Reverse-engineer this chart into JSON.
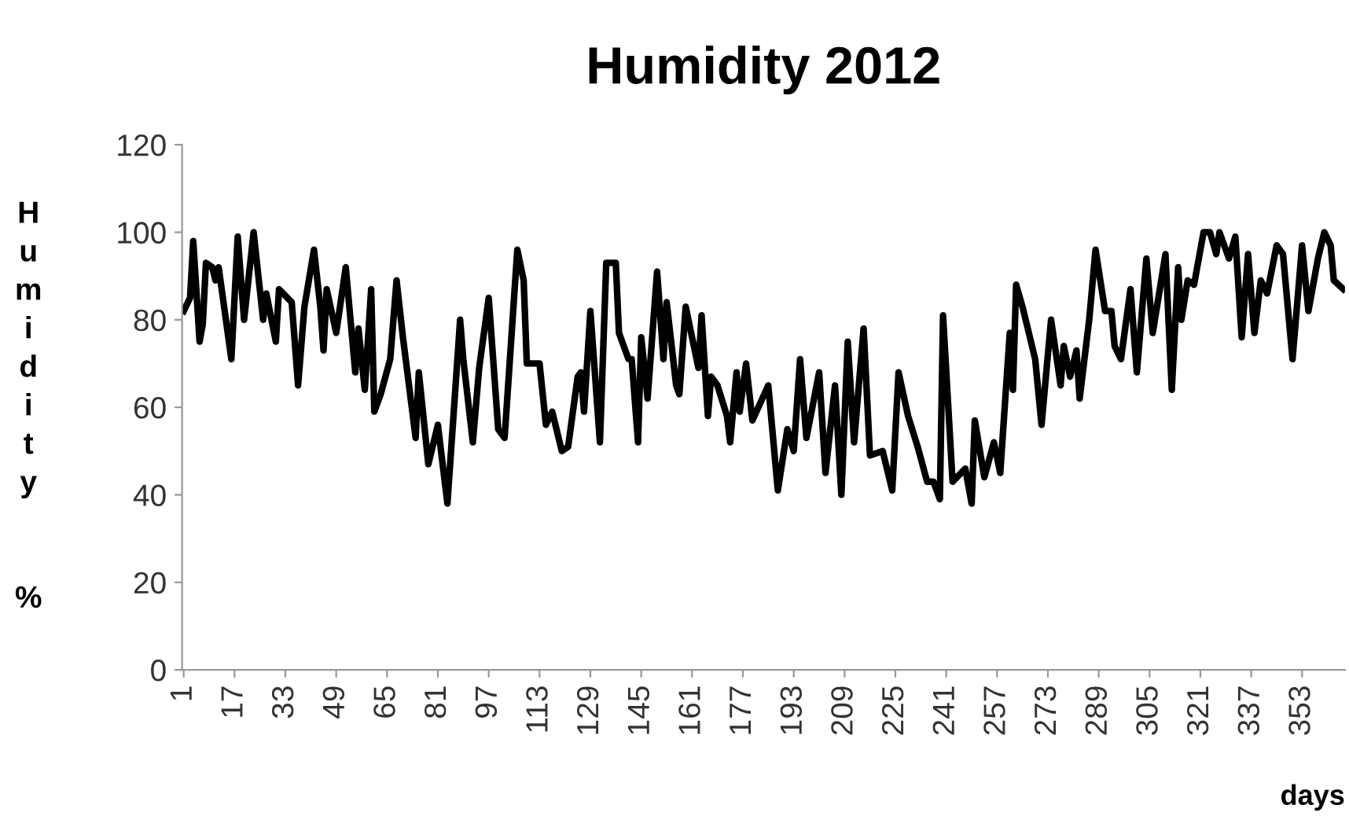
{
  "chart_data": {
    "type": "line",
    "title": "Humidity 2012",
    "xlabel": "days",
    "ylabel": "Humidity %",
    "x": [
      1,
      3,
      4,
      6,
      7,
      8,
      10,
      11,
      12,
      16,
      18,
      20,
      23,
      26,
      27,
      30,
      31,
      35,
      37,
      39,
      42,
      44,
      45,
      46,
      49,
      52,
      55,
      56,
      58,
      60,
      61,
      63,
      66,
      68,
      70,
      74,
      75,
      78,
      81,
      84,
      88,
      89,
      92,
      94,
      97,
      100,
      102,
      106,
      108,
      109,
      113,
      115,
      117,
      120,
      122,
      125,
      126,
      127,
      129,
      132,
      134,
      137,
      138,
      141,
      142,
      144,
      145,
      147,
      150,
      152,
      153,
      156,
      157,
      159,
      163,
      164,
      166,
      167,
      169,
      172,
      173,
      175,
      176,
      178,
      180,
      185,
      188,
      191,
      193,
      195,
      197,
      201,
      203,
      206,
      208,
      210,
      212,
      215,
      217,
      221,
      224,
      226,
      229,
      232,
      235,
      237,
      239,
      240,
      243,
      247,
      249,
      250,
      253,
      256,
      258,
      261,
      262,
      263,
      265,
      269,
      271,
      274,
      277,
      278,
      280,
      282,
      283,
      286,
      288,
      291,
      293,
      294,
      296,
      299,
      301,
      304,
      306,
      310,
      312,
      314,
      315,
      317,
      319,
      322,
      324,
      326,
      327,
      330,
      332,
      334,
      336,
      338,
      340,
      342,
      345,
      347,
      350,
      353,
      355,
      358,
      360,
      362,
      363,
      366
    ],
    "series": [
      {
        "color": "#000000",
        "values": [
          82,
          85,
          98,
          75,
          79,
          93,
          92,
          89,
          92,
          71,
          99,
          80,
          100,
          80,
          86,
          75,
          87,
          84,
          65,
          83,
          96,
          83,
          73,
          87,
          77,
          92,
          68,
          78,
          64,
          87,
          59,
          63,
          71,
          89,
          76,
          53,
          68,
          47,
          56,
          38,
          80,
          71,
          52,
          69,
          85,
          55,
          53,
          96,
          89,
          70,
          70,
          56,
          59,
          50,
          51,
          67,
          68,
          59,
          82,
          52,
          93,
          93,
          77,
          71,
          71,
          52,
          76,
          62,
          91,
          71,
          84,
          65,
          63,
          83,
          69,
          81,
          58,
          67,
          65,
          58,
          52,
          68,
          59,
          70,
          57,
          65,
          41,
          55,
          50,
          71,
          53,
          68,
          45,
          65,
          40,
          75,
          52,
          78,
          49,
          50,
          41,
          68,
          58,
          51,
          43,
          43,
          39,
          81,
          43,
          46,
          38,
          57,
          44,
          52,
          45,
          77,
          64,
          88,
          83,
          71,
          56,
          80,
          65,
          74,
          67,
          73,
          62,
          80,
          96,
          82,
          82,
          74,
          71,
          87,
          68,
          94,
          77,
          95,
          64,
          92,
          80,
          89,
          88,
          100,
          100,
          95,
          100,
          94,
          99,
          76,
          95,
          77,
          89,
          86,
          97,
          95,
          71,
          97,
          82,
          94,
          100,
          97,
          89,
          87
        ]
      }
    ],
    "xlim": [
      0.5,
      366.5
    ],
    "xticks": [
      1,
      17,
      33,
      49,
      65,
      81,
      97,
      113,
      129,
      145,
      161,
      177,
      193,
      209,
      225,
      241,
      257,
      273,
      289,
      305,
      321,
      337,
      353
    ],
    "ylim": [
      0,
      120
    ],
    "yticks": [
      0,
      20,
      40,
      60,
      80,
      100,
      120
    ],
    "grid": false,
    "legend": false,
    "marker": "none",
    "line_style": "solid"
  }
}
